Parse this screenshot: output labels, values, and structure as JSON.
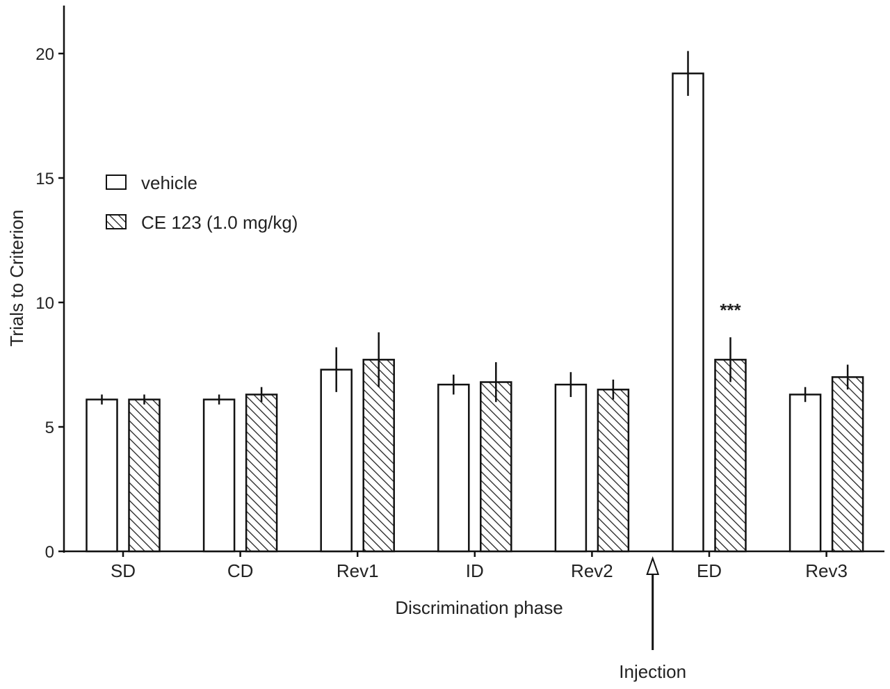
{
  "chart_data": {
    "type": "bar",
    "xlabel": "Discrimination phase",
    "ylabel": "Trials to Criterion",
    "ylim": [
      0,
      22
    ],
    "yticks": [
      0,
      5,
      10,
      15,
      20
    ],
    "grid": false,
    "legend_position": "upper-left",
    "categories": [
      "SD",
      "CD",
      "Rev1",
      "ID",
      "Rev2",
      "ED",
      "Rev3"
    ],
    "series": [
      {
        "name": "vehicle",
        "pattern": "open",
        "values": [
          6.1,
          6.1,
          7.3,
          6.7,
          6.7,
          19.2,
          6.3
        ],
        "errors": [
          0.2,
          0.2,
          0.9,
          0.4,
          0.5,
          0.9,
          0.3
        ]
      },
      {
        "name": "CE 123 (1.0 mg/kg)",
        "pattern": "hatched",
        "values": [
          6.1,
          6.3,
          7.7,
          6.8,
          6.5,
          7.7,
          7.0
        ],
        "errors": [
          0.2,
          0.3,
          1.1,
          0.8,
          0.4,
          0.9,
          0.5
        ]
      }
    ],
    "annotations": [
      {
        "text": "***",
        "category": "ED",
        "series": 1
      },
      {
        "text": "Injection",
        "between": [
          "Rev2",
          "ED"
        ]
      }
    ]
  }
}
